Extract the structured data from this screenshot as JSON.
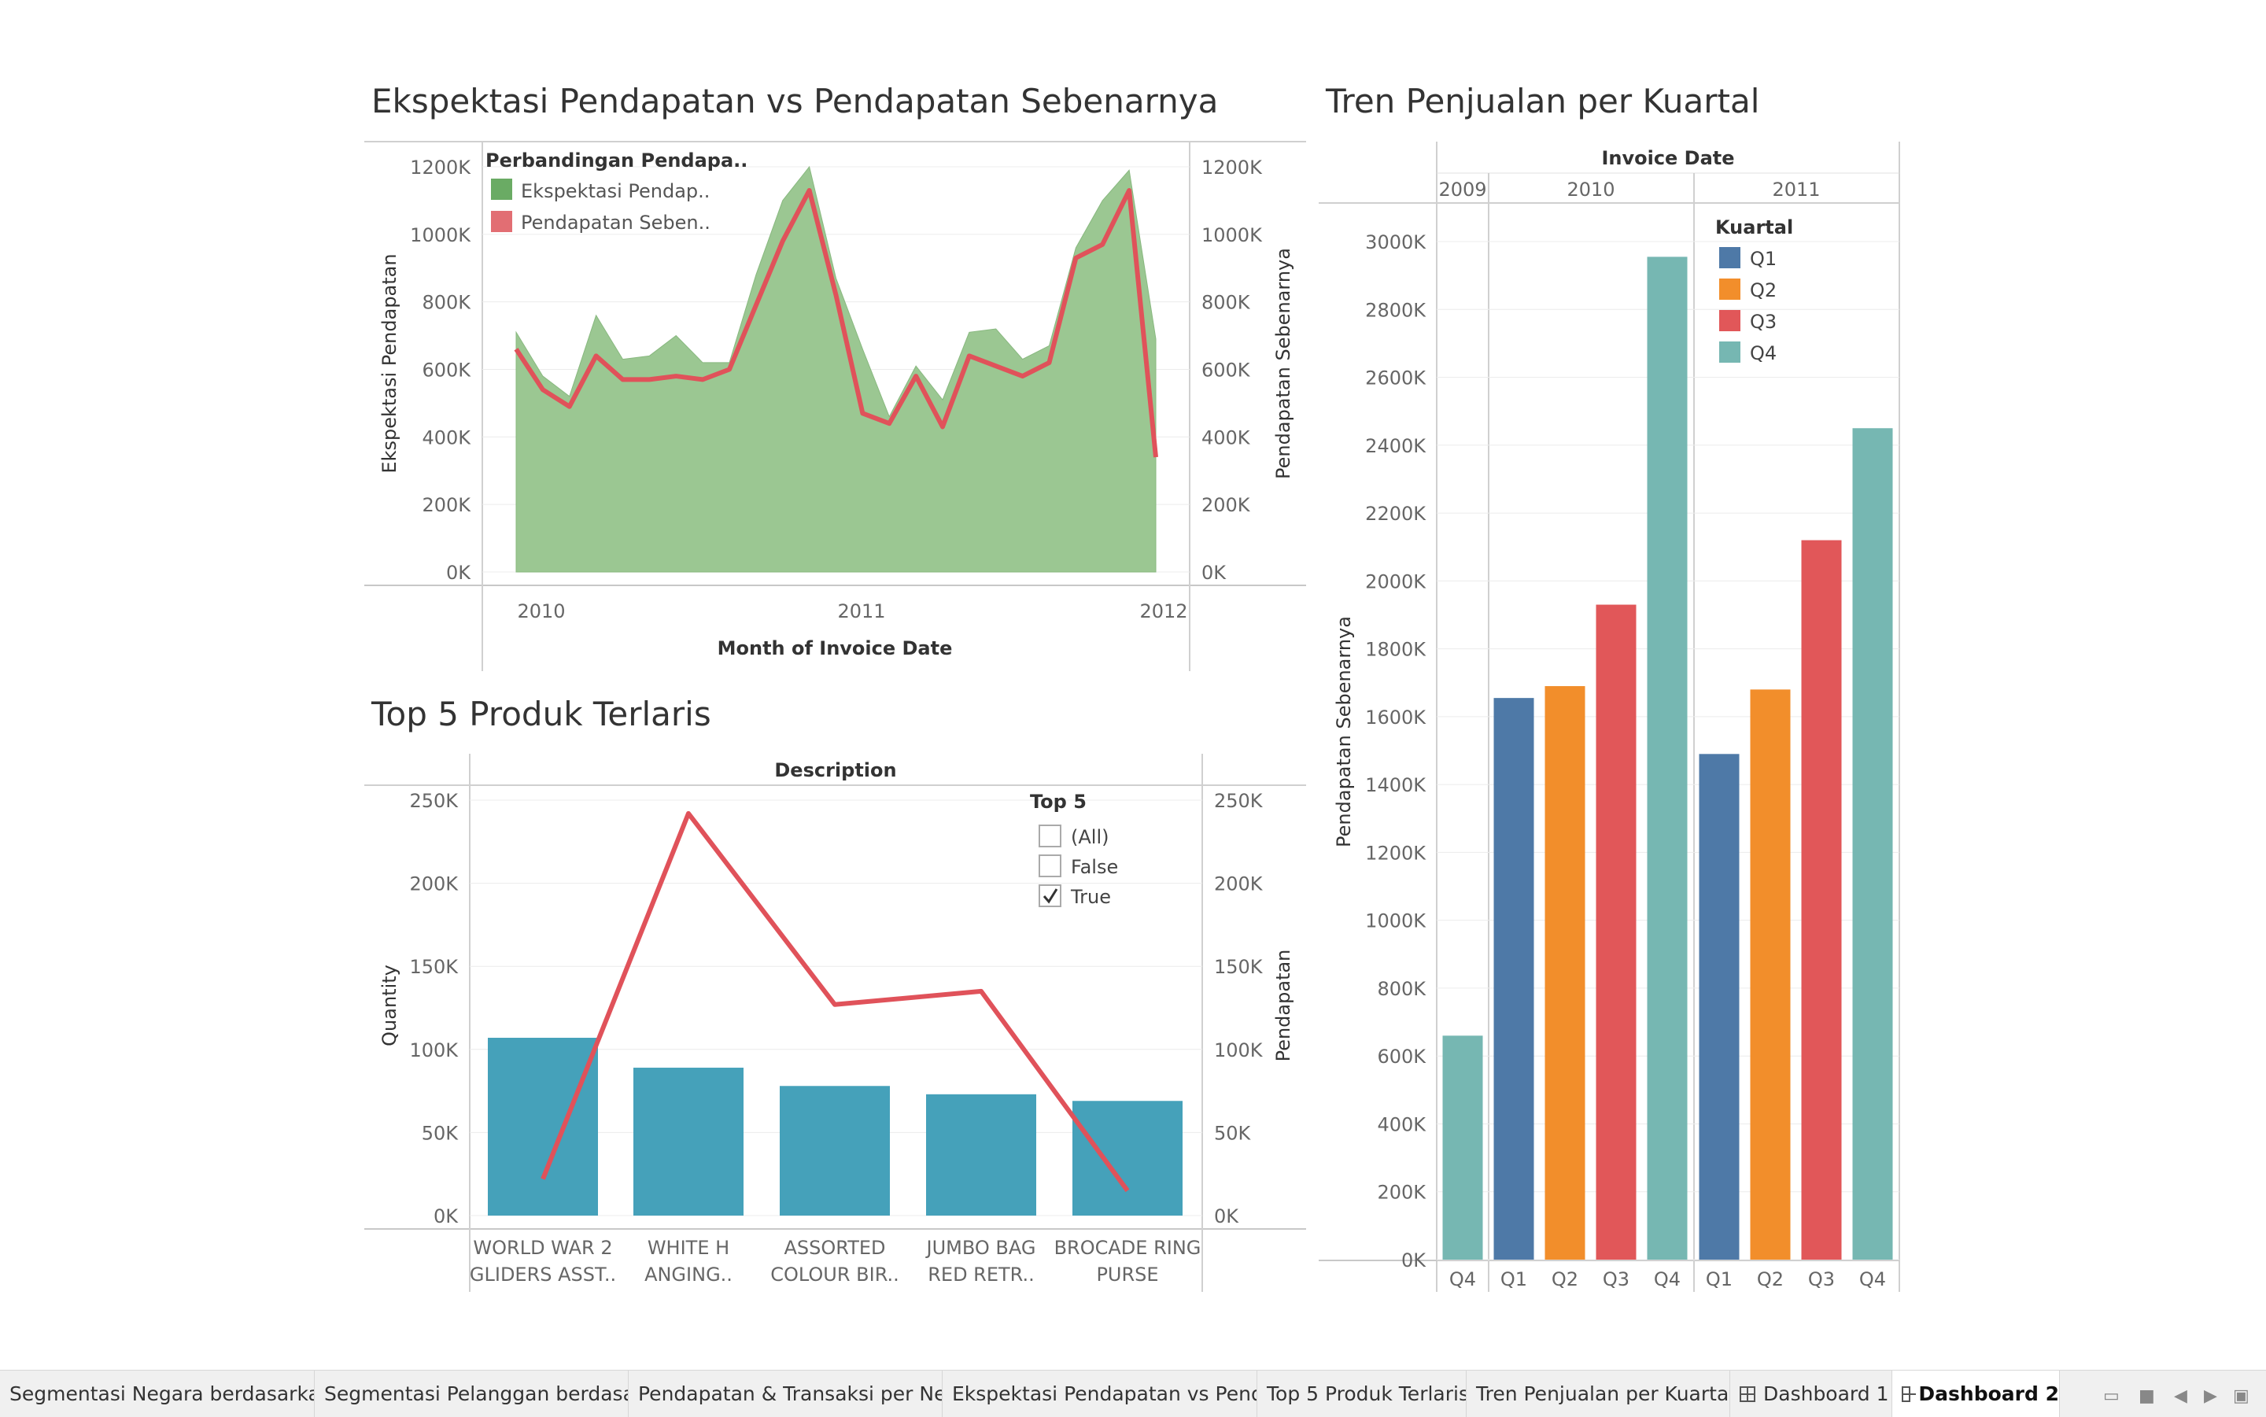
{
  "colors": {
    "area": "#9bc792",
    "line": "#e0525a",
    "bar_teal": "#45a1ba",
    "q1": "#4e79a7",
    "q2": "#f28e2b",
    "q3": "#e15759",
    "q4": "#76b7b2",
    "legend_green": "#6aab64",
    "legend_red": "#e26e73"
  },
  "chart1": {
    "title": "Ekspektasi Pendapatan vs Pendapatan Sebenarnya",
    "xlabel": "Month of Invoice Date",
    "ylabel_left": "Ekspektasi Pendapatan",
    "ylabel_right": "Pendapatan Sebenarnya",
    "legend_title": "Perbandingan Pendapa..",
    "legend_items": [
      "Ekspektasi Pendap..",
      "Pendapatan Seben.."
    ],
    "y_ticks": [
      "0K",
      "200K",
      "400K",
      "600K",
      "800K",
      "1000K",
      "1200K"
    ],
    "x_ticks": [
      "2010",
      "2011",
      "2012"
    ]
  },
  "chart2": {
    "title": "Top 5 Produk Terlaris",
    "header": "Description",
    "ylabel_left": "Quantity",
    "ylabel_right": "Pendapatan",
    "y_ticks": [
      "0K",
      "50K",
      "100K",
      "150K",
      "200K",
      "250K"
    ],
    "filter": {
      "title": "Top 5",
      "options": [
        "(All)",
        "False",
        "True"
      ],
      "checked": [
        false,
        false,
        true
      ]
    },
    "categories": [
      [
        "WORLD WAR 2",
        "GLIDERS ASST.."
      ],
      [
        "WHITE H",
        "ANGING.."
      ],
      [
        "ASSORTED",
        "COLOUR BIR.."
      ],
      [
        "JUMBO BAG",
        "RED RETR.."
      ],
      [
        "BROCADE RING",
        "PURSE"
      ]
    ]
  },
  "chart3": {
    "title": "Tren Penjualan per Kuartal",
    "header": "Invoice Date",
    "years": [
      "2009",
      "2010",
      "2011"
    ],
    "ylabel": "Pendapatan Sebenarnya",
    "legend_title": "Kuartal",
    "legend_items": [
      "Q1",
      "Q2",
      "Q3",
      "Q4"
    ],
    "y_ticks": [
      "0K",
      "200K",
      "400K",
      "600K",
      "800K",
      "1000K",
      "1200K",
      "1400K",
      "1600K",
      "1800K",
      "2000K",
      "2200K",
      "2400K",
      "2600K",
      "2800K",
      "3000K"
    ],
    "quarters": [
      "Q4",
      "Q1",
      "Q2",
      "Q3",
      "Q4",
      "Q1",
      "Q2",
      "Q3",
      "Q4"
    ]
  },
  "chart_data": [
    {
      "type": "area",
      "title": "Ekspektasi Pendapatan vs Pendapatan Sebenarnya",
      "xlabel": "Month of Invoice Date",
      "ylabel": "Ekspektasi Pendapatan",
      "ylim": [
        0,
        1200000
      ],
      "x": [
        "2009-12",
        "2010-01",
        "2010-02",
        "2010-03",
        "2010-04",
        "2010-05",
        "2010-06",
        "2010-07",
        "2010-08",
        "2010-09",
        "2010-10",
        "2010-11",
        "2010-12",
        "2011-01",
        "2011-02",
        "2011-03",
        "2011-04",
        "2011-05",
        "2011-06",
        "2011-07",
        "2011-08",
        "2011-09",
        "2011-10",
        "2011-11",
        "2011-12"
      ],
      "series": [
        {
          "name": "Ekspektasi Pendap..",
          "type": "area",
          "values": [
            710000,
            580000,
            520000,
            760000,
            630000,
            640000,
            700000,
            620000,
            620000,
            880000,
            1100000,
            1200000,
            870000,
            660000,
            460000,
            610000,
            510000,
            710000,
            720000,
            630000,
            670000,
            960000,
            1100000,
            1190000,
            690000
          ]
        },
        {
          "name": "Pendapatan Seben..",
          "type": "line",
          "values": [
            660000,
            540000,
            490000,
            640000,
            570000,
            570000,
            580000,
            570000,
            600000,
            790000,
            980000,
            1130000,
            820000,
            470000,
            440000,
            580000,
            430000,
            640000,
            610000,
            580000,
            620000,
            930000,
            970000,
            1130000,
            340000
          ]
        }
      ],
      "legend": "top-left"
    },
    {
      "type": "bar",
      "title": "Top 5 Produk Terlaris",
      "categories": [
        "WORLD WAR 2 GLIDERS ASST..",
        "WHITE H ANGING..",
        "ASSORTED COLOUR BIR..",
        "JUMBO BAG RED RETR..",
        "BROCADE RING PURSE"
      ],
      "ylim": [
        0,
        250000
      ],
      "series": [
        {
          "name": "Quantity",
          "type": "bar",
          "values": [
            107000,
            89000,
            78000,
            73000,
            69000
          ]
        },
        {
          "name": "Pendapatan",
          "type": "line",
          "values": [
            22000,
            242000,
            127000,
            135000,
            15000
          ]
        }
      ]
    },
    {
      "type": "bar",
      "title": "Tren Penjualan per Kuartal",
      "ylabel": "Pendapatan Sebenarnya",
      "ylim": [
        0,
        3000000
      ],
      "categories": [
        "2009 Q4",
        "2010 Q1",
        "2010 Q2",
        "2010 Q3",
        "2010 Q4",
        "2011 Q1",
        "2011 Q2",
        "2011 Q3",
        "2011 Q4"
      ],
      "values": [
        660000,
        1655000,
        1690000,
        1930000,
        2955000,
        1490000,
        1680000,
        2120000,
        2450000
      ],
      "color_by": [
        "Q4",
        "Q1",
        "Q2",
        "Q3",
        "Q4",
        "Q1",
        "Q2",
        "Q3",
        "Q4"
      ],
      "legend": "top-right"
    }
  ],
  "tabs": [
    {
      "label": "Segmentasi Negara berdasarka...",
      "icon": false
    },
    {
      "label": "Segmentasi Pelanggan berdasar...",
      "icon": false
    },
    {
      "label": "Pendapatan & Transaksi per Neg...",
      "icon": false
    },
    {
      "label": "Ekspektasi Pendapatan vs Pend...",
      "icon": false
    },
    {
      "label": "Top 5 Produk Terlaris",
      "icon": false
    },
    {
      "label": "Tren Penjualan per Kuartal",
      "icon": false
    },
    {
      "label": "Dashboard 1",
      "icon": true
    },
    {
      "label": "Dashboard 2",
      "icon": true,
      "active": true
    }
  ]
}
